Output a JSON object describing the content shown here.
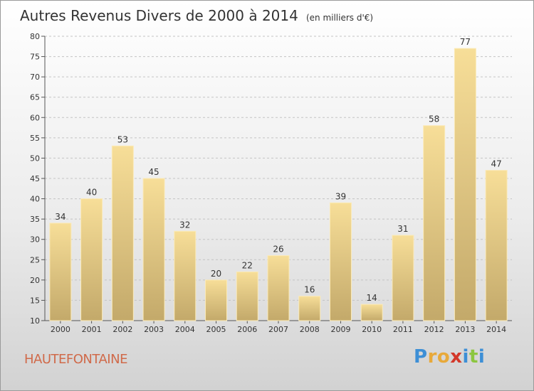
{
  "title": "Autres Revenus Divers de 2000 à 2014",
  "unit_note": "(en milliers d'€)",
  "commune": "HAUTEFONTAINE",
  "logo": {
    "letters": [
      "P",
      "r",
      "o",
      "x",
      "i",
      "t",
      "i"
    ],
    "colors": [
      "#3d8fd6",
      "#e8a93a",
      "#e8a93a",
      "#d3382a",
      "#3d8fd6",
      "#8cc63f",
      "#3d8fd6"
    ]
  },
  "chart_data": {
    "type": "bar",
    "categories": [
      "2000",
      "2001",
      "2002",
      "2003",
      "2004",
      "2005",
      "2006",
      "2007",
      "2008",
      "2009",
      "2010",
      "2011",
      "2012",
      "2013",
      "2014"
    ],
    "values": [
      34,
      40,
      53,
      45,
      32,
      20,
      22,
      26,
      16,
      39,
      14,
      31,
      58,
      77,
      47
    ],
    "title": "Autres Revenus Divers de 2000 à 2014",
    "ylim": [
      10,
      80
    ],
    "yticks": [
      10,
      15,
      20,
      25,
      30,
      35,
      40,
      45,
      50,
      55,
      60,
      65,
      70,
      75,
      80
    ],
    "grid": true,
    "bar_color": "#dcc27e"
  }
}
